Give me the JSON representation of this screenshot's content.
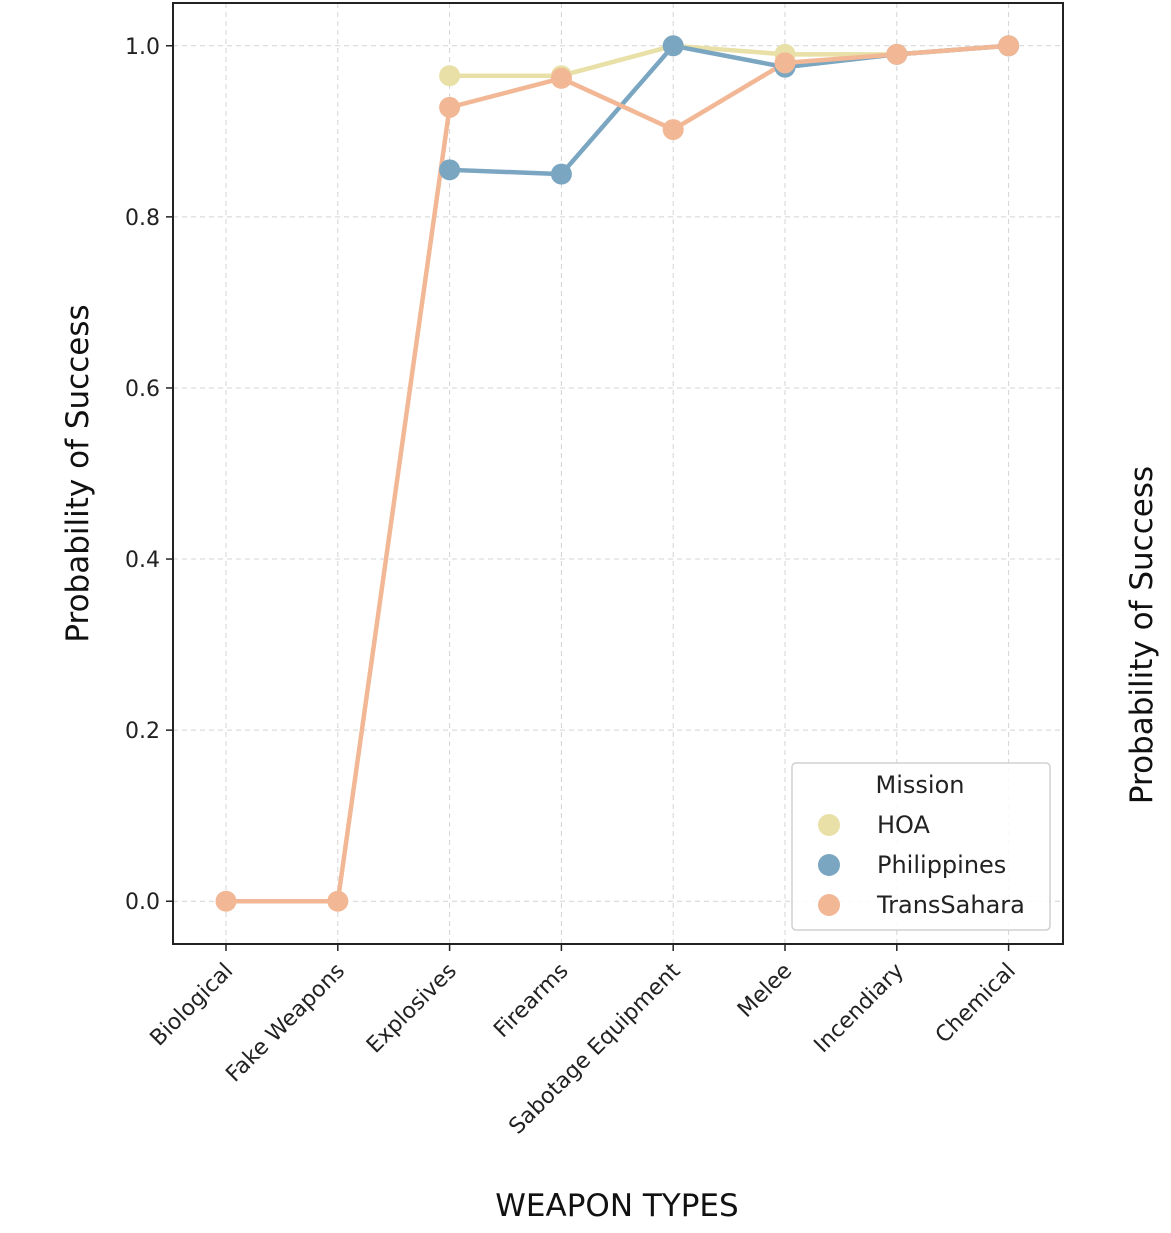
{
  "chart_data": {
    "type": "line",
    "categories": [
      "Biological",
      "Fake Weapons",
      "Explosives",
      "Firearms",
      "Sabotage Equipment",
      "Melee",
      "Incendiary",
      "Chemical"
    ],
    "series": [
      {
        "name": "HOA",
        "color": "#e8e0a6",
        "values": [
          null,
          null,
          0.965,
          0.965,
          1.0,
          0.99,
          0.99,
          1.0
        ]
      },
      {
        "name": "Philippines",
        "color": "#7aa6c2",
        "values": [
          null,
          null,
          0.855,
          0.85,
          1.0,
          0.975,
          0.99,
          1.0
        ]
      },
      {
        "name": "TransSahara",
        "color": "#f2b795",
        "values": [
          0.0,
          0.0,
          0.928,
          0.962,
          0.902,
          0.98,
          0.99,
          1.0
        ]
      }
    ],
    "xlabel": "WEAPON TYPES",
    "ylabel": "Probability of Success",
    "right_ylabel": "Probability of Success",
    "ylim": [
      -0.05,
      1.05
    ],
    "yticks": [
      "0.0",
      "0.2",
      "0.4",
      "0.6",
      "0.8",
      "1.0"
    ],
    "grid": true,
    "legend": {
      "title": "Mission",
      "placement": "lower-right"
    }
  }
}
